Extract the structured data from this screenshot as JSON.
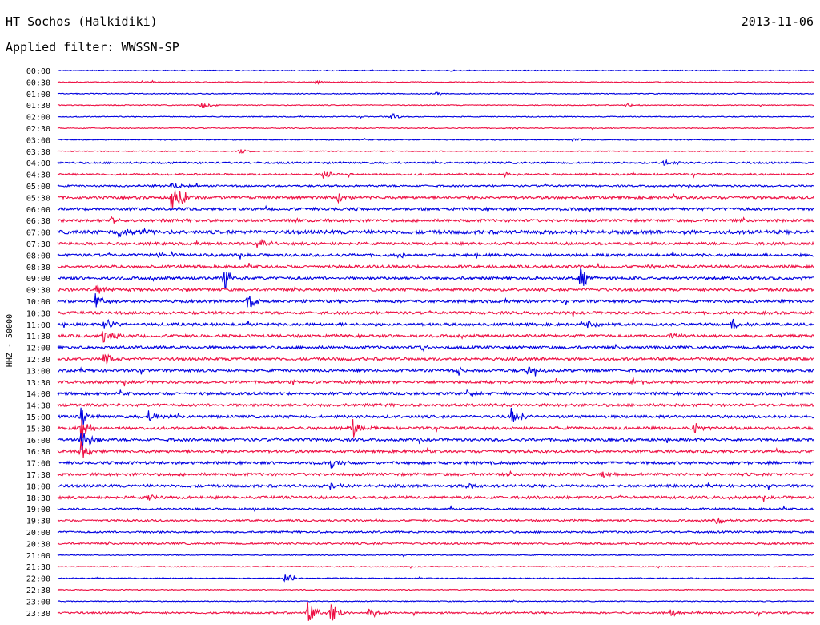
{
  "header": {
    "station": "HT Sochos (Halkidiki)",
    "date": "2013-11-06",
    "filter": "Applied filter: WWSSN-SP"
  },
  "chart_data": {
    "type": "line",
    "title": "HT Sochos (Halkidiki)",
    "ylabel": "HHZ - 50000",
    "xlabel": "",
    "grid": false,
    "colors": [
      "#0000e0",
      "#ee1044"
    ],
    "trace_labels": [
      "00:00",
      "00:30",
      "01:00",
      "01:30",
      "02:00",
      "02:30",
      "03:00",
      "03:30",
      "04:00",
      "04:30",
      "05:00",
      "05:30",
      "06:00",
      "06:30",
      "07:00",
      "07:30",
      "08:00",
      "08:30",
      "09:00",
      "09:30",
      "10:00",
      "10:30",
      "11:00",
      "11:30",
      "12:00",
      "12:30",
      "13:00",
      "13:30",
      "14:00",
      "14:30",
      "15:00",
      "15:30",
      "16:00",
      "16:30",
      "17:00",
      "17:30",
      "18:00",
      "18:30",
      "19:00",
      "19:30",
      "20:00",
      "20:30",
      "21:00",
      "21:30",
      "22:00",
      "22:30",
      "23:00",
      "23:30"
    ],
    "noise_level": [
      1,
      1,
      1,
      1,
      1,
      1,
      1,
      1,
      2,
      2,
      2,
      3,
      3,
      3,
      4,
      3,
      3,
      3,
      3,
      3,
      3,
      3,
      3,
      3,
      3,
      3,
      3,
      3,
      3,
      3,
      3,
      3,
      3,
      3,
      3,
      3,
      3,
      3,
      2,
      2,
      2,
      2,
      1,
      1,
      1,
      1,
      1,
      2
    ],
    "events": [
      {
        "row": 0,
        "t": 0.52,
        "amp": 2
      },
      {
        "row": 1,
        "t": 0.34,
        "amp": 3
      },
      {
        "row": 2,
        "t": 0.5,
        "amp": 2
      },
      {
        "row": 3,
        "t": 0.19,
        "amp": 6
      },
      {
        "row": 3,
        "t": 0.75,
        "amp": 3
      },
      {
        "row": 4,
        "t": 0.44,
        "amp": 5
      },
      {
        "row": 5,
        "t": 0.6,
        "amp": 2
      },
      {
        "row": 6,
        "t": 0.68,
        "amp": 3
      },
      {
        "row": 7,
        "t": 0.24,
        "amp": 3
      },
      {
        "row": 8,
        "t": 0.8,
        "amp": 6
      },
      {
        "row": 9,
        "t": 0.35,
        "amp": 7
      },
      {
        "row": 9,
        "t": 0.59,
        "amp": 3
      },
      {
        "row": 10,
        "t": 0.15,
        "amp": 8
      },
      {
        "row": 11,
        "t": 0.15,
        "amp": 18
      },
      {
        "row": 11,
        "t": 0.16,
        "amp": 14
      },
      {
        "row": 11,
        "t": 0.37,
        "amp": 9
      },
      {
        "row": 13,
        "t": 0.31,
        "amp": 5
      },
      {
        "row": 13,
        "t": 0.07,
        "amp": 6
      },
      {
        "row": 14,
        "t": 0.08,
        "amp": 8
      },
      {
        "row": 14,
        "t": 0.11,
        "amp": 7
      },
      {
        "row": 15,
        "t": 0.27,
        "amp": 5
      },
      {
        "row": 16,
        "t": 0.13,
        "amp": 6
      },
      {
        "row": 16,
        "t": 0.45,
        "amp": 5
      },
      {
        "row": 17,
        "t": 0.78,
        "amp": 4
      },
      {
        "row": 18,
        "t": 0.22,
        "amp": 18
      },
      {
        "row": 18,
        "t": 0.69,
        "amp": 16
      },
      {
        "row": 19,
        "t": 0.05,
        "amp": 8
      },
      {
        "row": 20,
        "t": 0.05,
        "amp": 9
      },
      {
        "row": 20,
        "t": 0.25,
        "amp": 12
      },
      {
        "row": 22,
        "t": 0.06,
        "amp": 12
      },
      {
        "row": 22,
        "t": 0.7,
        "amp": 7
      },
      {
        "row": 22,
        "t": 0.89,
        "amp": 10
      },
      {
        "row": 23,
        "t": 0.06,
        "amp": 10
      },
      {
        "row": 23,
        "t": 0.81,
        "amp": 6
      },
      {
        "row": 24,
        "t": 0.48,
        "amp": 8
      },
      {
        "row": 25,
        "t": 0.06,
        "amp": 8
      },
      {
        "row": 26,
        "t": 0.53,
        "amp": 6
      },
      {
        "row": 26,
        "t": 0.62,
        "amp": 6
      },
      {
        "row": 27,
        "t": 0.31,
        "amp": 5
      },
      {
        "row": 27,
        "t": 0.76,
        "amp": 5
      },
      {
        "row": 28,
        "t": 0.54,
        "amp": 4
      },
      {
        "row": 30,
        "t": 0.03,
        "amp": 14
      },
      {
        "row": 30,
        "t": 0.12,
        "amp": 10
      },
      {
        "row": 30,
        "t": 0.6,
        "amp": 10
      },
      {
        "row": 31,
        "t": 0.03,
        "amp": 18
      },
      {
        "row": 31,
        "t": 0.39,
        "amp": 14
      },
      {
        "row": 31,
        "t": 0.84,
        "amp": 10
      },
      {
        "row": 32,
        "t": 0.03,
        "amp": 22
      },
      {
        "row": 33,
        "t": 0.03,
        "amp": 14
      },
      {
        "row": 34,
        "t": 0.36,
        "amp": 7
      },
      {
        "row": 35,
        "t": 0.72,
        "amp": 5
      },
      {
        "row": 36,
        "t": 0.36,
        "amp": 6
      },
      {
        "row": 36,
        "t": 0.54,
        "amp": 5
      },
      {
        "row": 37,
        "t": 0.12,
        "amp": 6
      },
      {
        "row": 39,
        "t": 0.87,
        "amp": 7
      },
      {
        "row": 44,
        "t": 0.3,
        "amp": 9
      },
      {
        "row": 47,
        "t": 0.33,
        "amp": 16
      },
      {
        "row": 47,
        "t": 0.36,
        "amp": 20
      },
      {
        "row": 47,
        "t": 0.41,
        "amp": 10
      },
      {
        "row": 47,
        "t": 0.81,
        "amp": 6
      }
    ]
  }
}
